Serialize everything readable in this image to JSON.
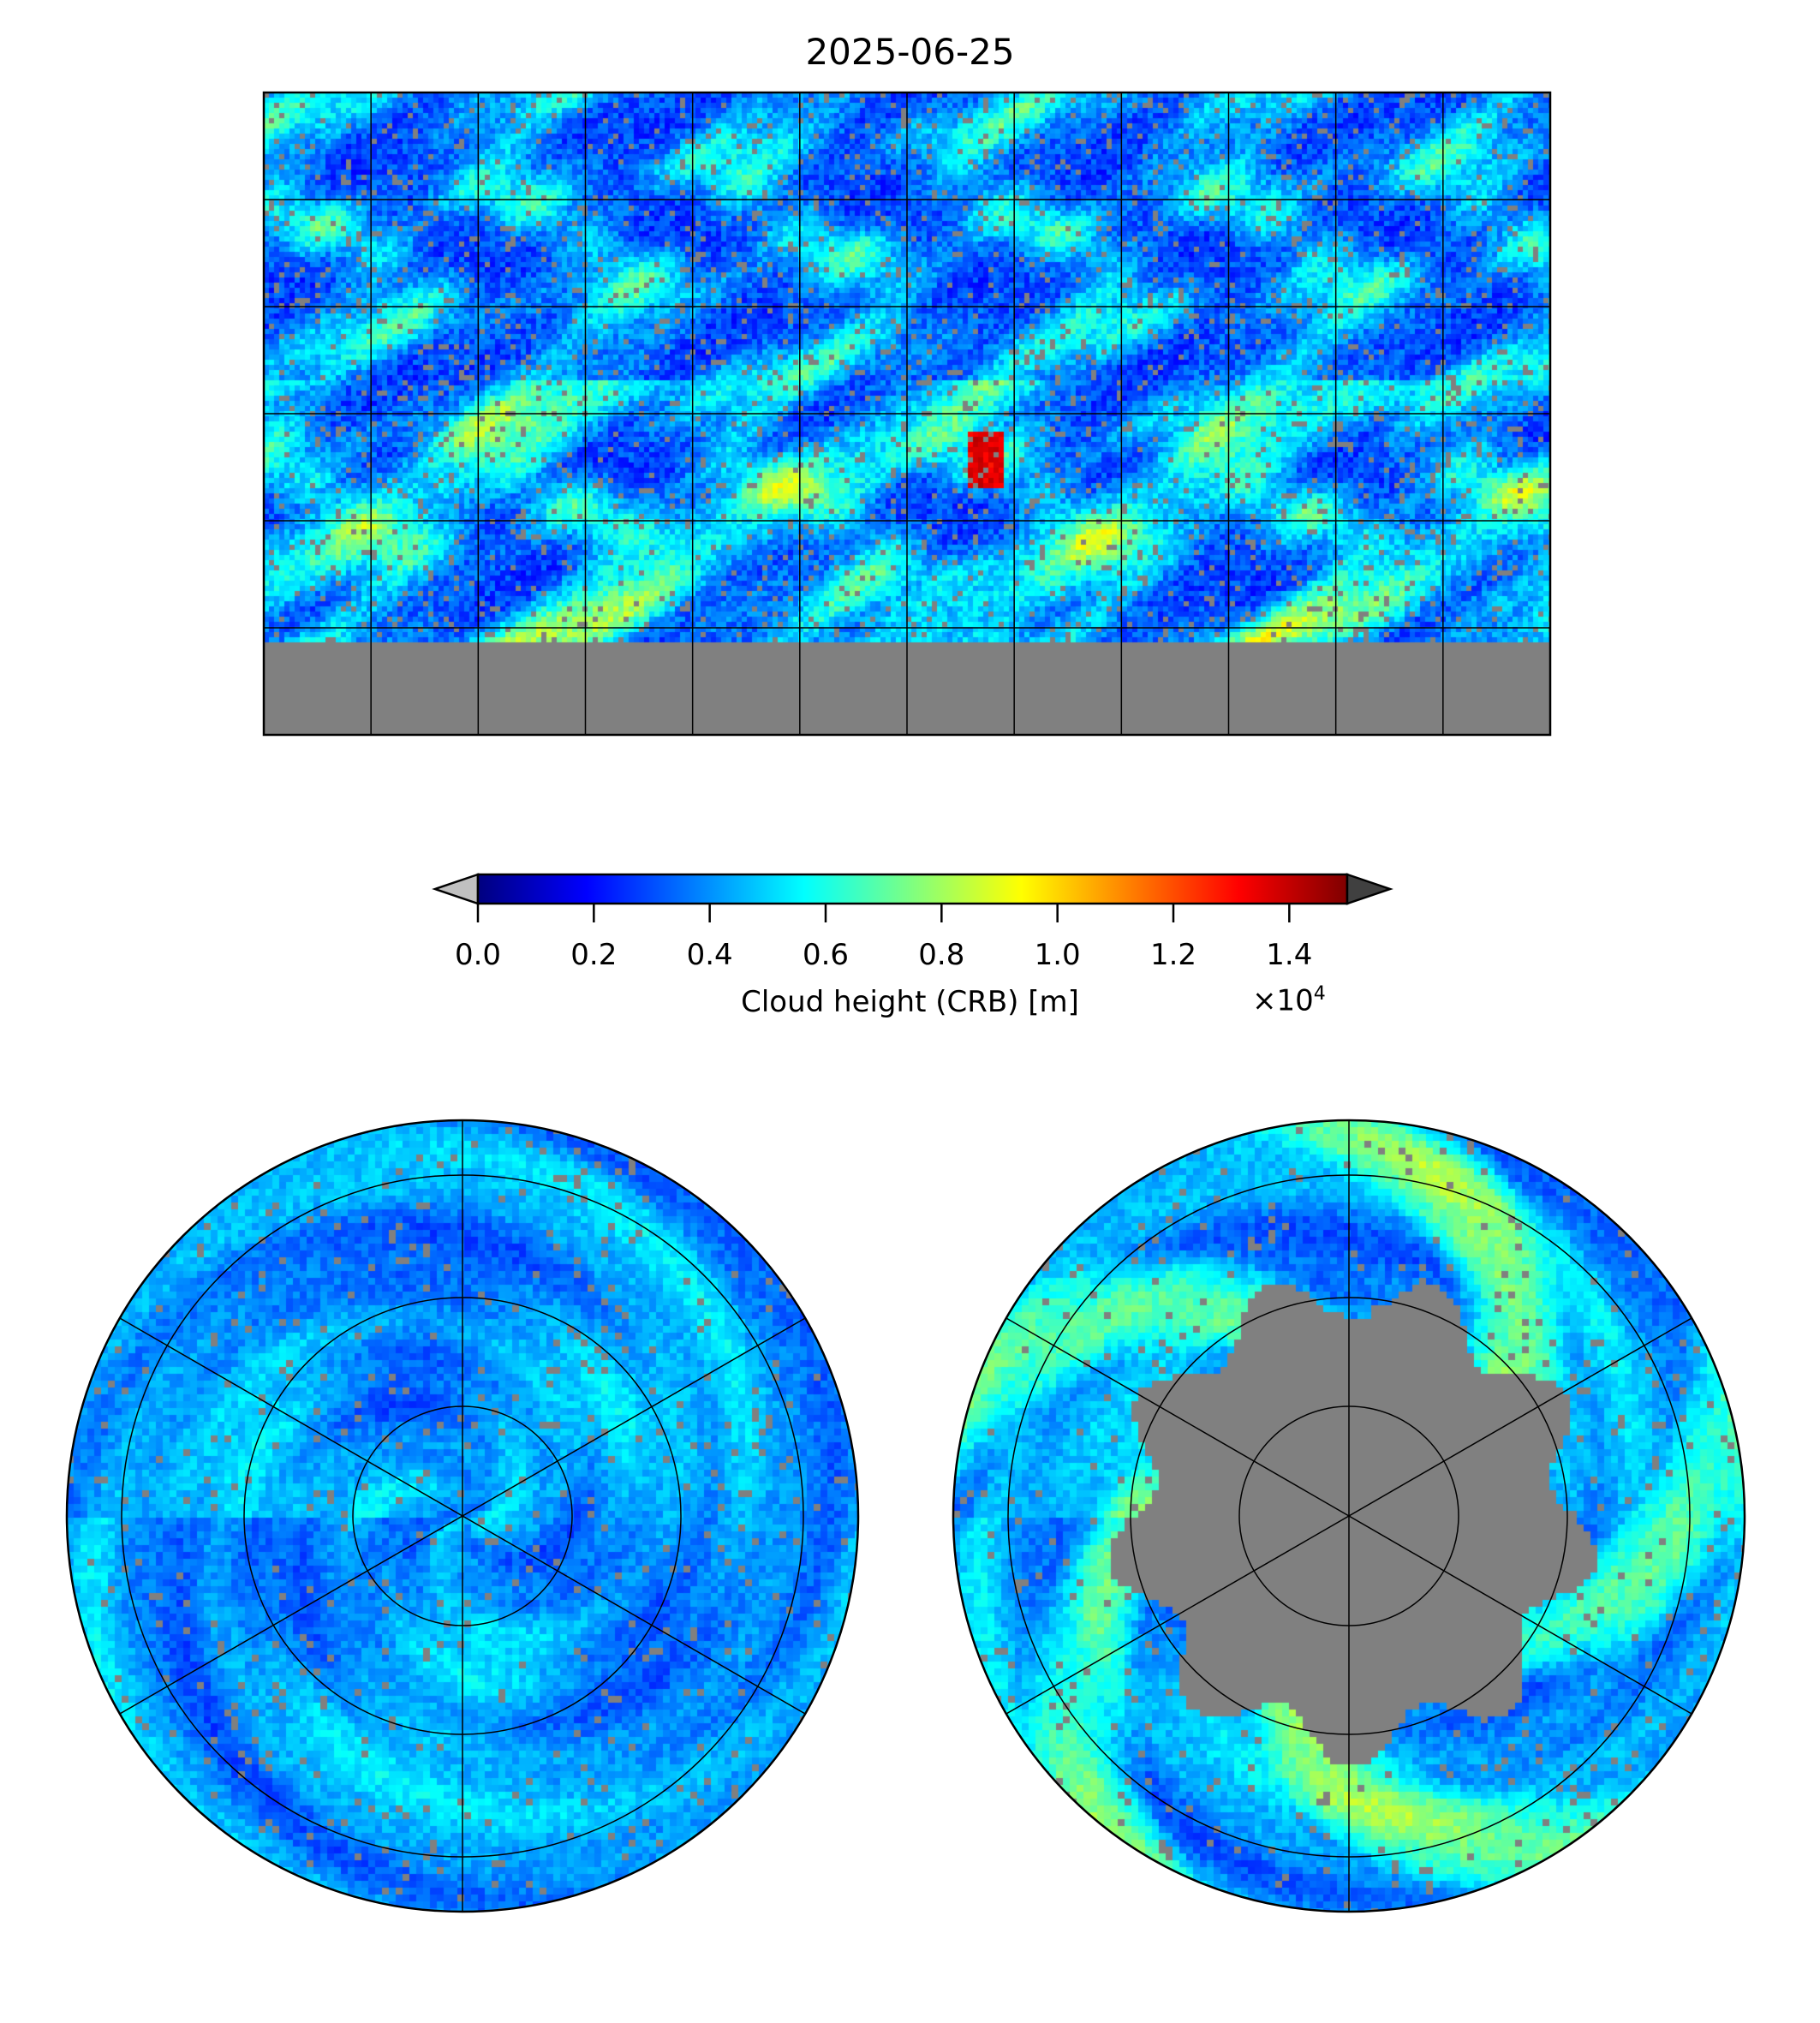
{
  "figure": {
    "title": "2025-06-25"
  },
  "colorbar": {
    "label": "Cloud height (CRB) [m]",
    "multiplier_base": "×10",
    "multiplier_exponent": "4",
    "range": [
      0,
      1.5
    ],
    "ticks": [
      "0.0",
      "0.2",
      "0.4",
      "0.6",
      "0.8",
      "1.0",
      "1.2",
      "1.4"
    ],
    "tick_values": [
      0,
      0.2,
      0.4,
      0.6,
      0.8,
      1.0,
      1.2,
      1.4
    ],
    "colormap": "jet",
    "under_color": "#c0c0c0",
    "over_color": "#404040",
    "missing_color": "#808080"
  },
  "maps": {
    "global": {
      "projection": "plate-carree"
    },
    "north_polar": {
      "projection": "north-polar-stereographic"
    },
    "south_polar": {
      "projection": "south-polar-stereographic"
    }
  }
}
